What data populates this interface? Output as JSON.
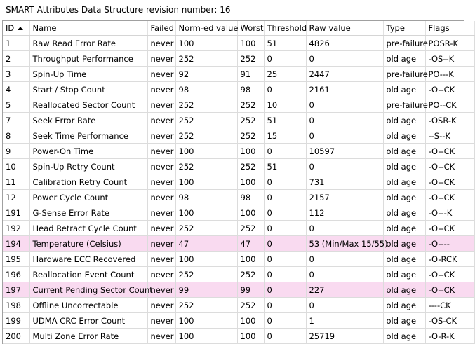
{
  "title": "SMART Attributes Data Structure revision number: 16",
  "columns": {
    "id": "ID",
    "name": "Name",
    "failed": "Failed",
    "normed": "Norm-ed value",
    "worst": "Worst",
    "threshold": "Threshold",
    "raw": "Raw value",
    "type": "Type",
    "flags": "Flags"
  },
  "sort": {
    "column": "ID",
    "direction": "ascending"
  },
  "colors": {
    "highlight": "#f9daf0"
  },
  "rows": [
    {
      "id": "1",
      "name": "Raw Read Error Rate",
      "failed": "never",
      "normed": "100",
      "worst": "100",
      "threshold": "51",
      "raw": "4826",
      "type": "pre-failure",
      "flags": "POSR-K",
      "highlight": false
    },
    {
      "id": "2",
      "name": "Throughput Performance",
      "failed": "never",
      "normed": "252",
      "worst": "252",
      "threshold": "0",
      "raw": "0",
      "type": "old age",
      "flags": "-OS--K",
      "highlight": false
    },
    {
      "id": "3",
      "name": "Spin-Up Time",
      "failed": "never",
      "normed": "92",
      "worst": "91",
      "threshold": "25",
      "raw": "2447",
      "type": "pre-failure",
      "flags": "PO---K",
      "highlight": false
    },
    {
      "id": "4",
      "name": "Start / Stop Count",
      "failed": "never",
      "normed": "98",
      "worst": "98",
      "threshold": "0",
      "raw": "2161",
      "type": "old age",
      "flags": "-O--CK",
      "highlight": false
    },
    {
      "id": "5",
      "name": "Reallocated Sector Count",
      "failed": "never",
      "normed": "252",
      "worst": "252",
      "threshold": "10",
      "raw": "0",
      "type": "pre-failure",
      "flags": "PO--CK",
      "highlight": false
    },
    {
      "id": "7",
      "name": "Seek Error Rate",
      "failed": "never",
      "normed": "252",
      "worst": "252",
      "threshold": "51",
      "raw": "0",
      "type": "old age",
      "flags": "-OSR-K",
      "highlight": false
    },
    {
      "id": "8",
      "name": "Seek Time Performance",
      "failed": "never",
      "normed": "252",
      "worst": "252",
      "threshold": "15",
      "raw": "0",
      "type": "old age",
      "flags": "--S--K",
      "highlight": false
    },
    {
      "id": "9",
      "name": "Power-On Time",
      "failed": "never",
      "normed": "100",
      "worst": "100",
      "threshold": "0",
      "raw": "10597",
      "type": "old age",
      "flags": "-O--CK",
      "highlight": false
    },
    {
      "id": "10",
      "name": "Spin-Up Retry Count",
      "failed": "never",
      "normed": "252",
      "worst": "252",
      "threshold": "51",
      "raw": "0",
      "type": "old age",
      "flags": "-O--CK",
      "highlight": false
    },
    {
      "id": "11",
      "name": "Calibration Retry Count",
      "failed": "never",
      "normed": "100",
      "worst": "100",
      "threshold": "0",
      "raw": "731",
      "type": "old age",
      "flags": "-O--CK",
      "highlight": false
    },
    {
      "id": "12",
      "name": "Power Cycle Count",
      "failed": "never",
      "normed": "98",
      "worst": "98",
      "threshold": "0",
      "raw": "2157",
      "type": "old age",
      "flags": "-O--CK",
      "highlight": false
    },
    {
      "id": "191",
      "name": "G-Sense Error Rate",
      "failed": "never",
      "normed": "100",
      "worst": "100",
      "threshold": "0",
      "raw": "112",
      "type": "old age",
      "flags": "-O---K",
      "highlight": false
    },
    {
      "id": "192",
      "name": "Head Retract Cycle Count",
      "failed": "never",
      "normed": "252",
      "worst": "252",
      "threshold": "0",
      "raw": "0",
      "type": "old age",
      "flags": "-O--CK",
      "highlight": false
    },
    {
      "id": "194",
      "name": "Temperature (Celsius)",
      "failed": "never",
      "normed": "47",
      "worst": "47",
      "threshold": "0",
      "raw": "53 (Min/Max 15/55)",
      "type": "old age",
      "flags": "-O----",
      "highlight": true
    },
    {
      "id": "195",
      "name": "Hardware ECC Recovered",
      "failed": "never",
      "normed": "100",
      "worst": "100",
      "threshold": "0",
      "raw": "0",
      "type": "old age",
      "flags": "-O-RCK",
      "highlight": false
    },
    {
      "id": "196",
      "name": "Reallocation Event Count",
      "failed": "never",
      "normed": "252",
      "worst": "252",
      "threshold": "0",
      "raw": "0",
      "type": "old age",
      "flags": "-O--CK",
      "highlight": false
    },
    {
      "id": "197",
      "name": "Current Pending Sector Count",
      "failed": "never",
      "normed": "99",
      "worst": "99",
      "threshold": "0",
      "raw": "227",
      "type": "old age",
      "flags": "-O--CK",
      "highlight": true
    },
    {
      "id": "198",
      "name": "Offline Uncorrectable",
      "failed": "never",
      "normed": "252",
      "worst": "252",
      "threshold": "0",
      "raw": "0",
      "type": "old age",
      "flags": "----CK",
      "highlight": false
    },
    {
      "id": "199",
      "name": "UDMA CRC Error Count",
      "failed": "never",
      "normed": "100",
      "worst": "100",
      "threshold": "0",
      "raw": "1",
      "type": "old age",
      "flags": "-OS-CK",
      "highlight": false
    },
    {
      "id": "200",
      "name": "Multi Zone Error Rate",
      "failed": "never",
      "normed": "100",
      "worst": "100",
      "threshold": "0",
      "raw": "25719",
      "type": "old age",
      "flags": "-O-R-K",
      "highlight": false
    }
  ]
}
